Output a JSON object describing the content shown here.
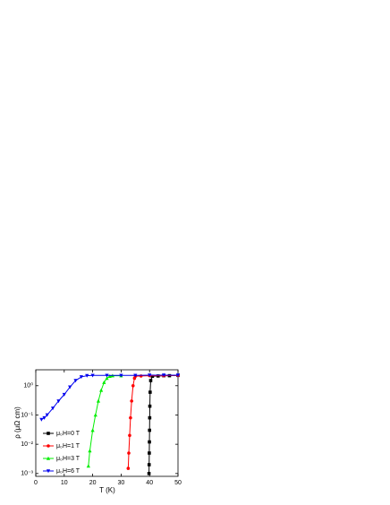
{
  "chart_data": {
    "type": "scatter",
    "x_label": "T (K)",
    "y_label": "ρ (μΩ cm)",
    "xlim": [
      0,
      50
    ],
    "xticks": [
      0,
      10,
      20,
      30,
      40,
      50
    ],
    "ylim": [
      0.0008,
      3.5
    ],
    "log_y": true,
    "yticks": [
      {
        "value": 0.001,
        "label": "10⁻³"
      },
      {
        "value": 0.01,
        "label": "10⁻²"
      },
      {
        "value": 0.1,
        "label": "10⁻¹"
      },
      {
        "value": 1,
        "label": "10⁰"
      }
    ],
    "legend": "lower left",
    "series": [
      {
        "name": "μ₀H=0 T",
        "color": "#000000",
        "marker": "square",
        "x": [
          39.8,
          39.85,
          39.9,
          39.95,
          40.0,
          40.05,
          40.1,
          40.2,
          40.4,
          41,
          43,
          45,
          47,
          50
        ],
        "values": [
          0.001,
          0.002,
          0.005,
          0.012,
          0.03,
          0.08,
          0.2,
          0.6,
          1.5,
          2.1,
          2.15,
          2.2,
          2.2,
          2.25
        ]
      },
      {
        "name": "μ₀H=1 T",
        "color": "#ff0000",
        "marker": "circle",
        "x": [
          32.5,
          32.7,
          33.0,
          33.3,
          33.7,
          34.2,
          34.7,
          35,
          37,
          40,
          45,
          50
        ],
        "values": [
          0.0015,
          0.005,
          0.02,
          0.08,
          0.3,
          1.0,
          1.8,
          2.1,
          2.15,
          2.2,
          2.2,
          2.25
        ]
      },
      {
        "name": "μ₀H=3 T",
        "color": "#00ee00",
        "marker": "triangle-up",
        "x": [
          18.5,
          19,
          20,
          21,
          22,
          23,
          24,
          25,
          26,
          27,
          30
        ],
        "values": [
          0.0018,
          0.006,
          0.03,
          0.1,
          0.3,
          0.7,
          1.3,
          1.8,
          2.1,
          2.2,
          2.2
        ]
      },
      {
        "name": "μ₀H=6 T",
        "color": "#0000ee",
        "marker": "triangle-down",
        "x": [
          2,
          3,
          4,
          6,
          8,
          10,
          12,
          14,
          16,
          18,
          20,
          25,
          30,
          35,
          40,
          45,
          50
        ],
        "values": [
          0.07,
          0.08,
          0.1,
          0.17,
          0.3,
          0.5,
          0.9,
          1.5,
          2.0,
          2.2,
          2.25,
          2.25,
          2.25,
          2.25,
          2.3,
          2.3,
          2.3
        ]
      }
    ]
  }
}
